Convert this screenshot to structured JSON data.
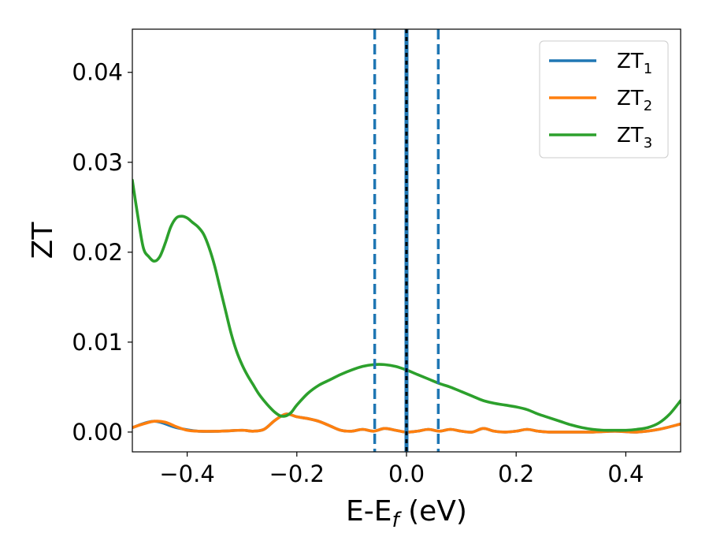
{
  "chart_data": {
    "type": "line",
    "title": "",
    "xlabel": {
      "main": "E-E",
      "sub": "f",
      "suffix": " (eV)"
    },
    "ylabel": "ZT",
    "xlim": [
      -0.5,
      0.5
    ],
    "ylim": [
      -0.0022,
      0.0448
    ],
    "grid": false,
    "legend_position": "top-right",
    "xticks": [
      -0.4,
      -0.2,
      0.0,
      0.2,
      0.4
    ],
    "xtick_labels": [
      "−0.4",
      "−0.2",
      "0.0",
      "0.2",
      "0.4"
    ],
    "yticks": [
      0.0,
      0.01,
      0.02,
      0.03,
      0.04
    ],
    "ytick_labels": [
      "0.00",
      "0.01",
      "0.02",
      "0.03",
      "0.04"
    ],
    "vlines": [
      {
        "x": -0.058,
        "style": "dashed",
        "color": "#1f77b4"
      },
      {
        "x": 0.058,
        "style": "dashed",
        "color": "#1f77b4"
      },
      {
        "x": 0.0,
        "style": "solid",
        "color": "#1f77b4"
      },
      {
        "x": 0.0,
        "style": "dotted",
        "color": "#000000"
      }
    ],
    "series": [
      {
        "name": "ZT",
        "name_sub": "1",
        "color": "#1f77b4",
        "x": [
          -0.5,
          -0.46,
          -0.42,
          -0.38,
          -0.34,
          -0.3,
          -0.28,
          -0.26,
          -0.24,
          -0.22,
          -0.2,
          -0.18,
          -0.16,
          -0.14,
          -0.12,
          -0.1,
          -0.08,
          -0.06,
          -0.04,
          -0.02,
          0.0,
          0.02,
          0.04,
          0.06,
          0.08,
          0.1,
          0.12,
          0.14,
          0.16,
          0.18,
          0.2,
          0.22,
          0.24,
          0.26,
          0.3,
          0.34,
          0.38,
          0.42,
          0.46,
          0.5
        ],
        "y": [
          0.0005,
          0.0012,
          0.0005,
          0.0001,
          0.0001,
          0.0002,
          0.0001,
          0.0003,
          0.0013,
          0.002,
          0.0017,
          0.0015,
          0.0012,
          0.0007,
          0.0002,
          0.0001,
          0.0003,
          0.0001,
          0.0004,
          0.0002,
          0.0,
          0.0001,
          0.0003,
          0.0001,
          0.0003,
          0.0001,
          0.0,
          0.0004,
          0.0001,
          0.0,
          0.0001,
          0.0003,
          0.0001,
          0.0,
          0.0,
          0.0,
          0.0001,
          0.0,
          0.0003,
          0.0009
        ]
      },
      {
        "name": "ZT",
        "name_sub": "2",
        "color": "#ff7f0e",
        "x": [
          -0.5,
          -0.48,
          -0.46,
          -0.44,
          -0.42,
          -0.4,
          -0.38,
          -0.34,
          -0.3,
          -0.28,
          -0.26,
          -0.24,
          -0.22,
          -0.2,
          -0.18,
          -0.16,
          -0.14,
          -0.12,
          -0.1,
          -0.08,
          -0.06,
          -0.04,
          -0.02,
          0.0,
          0.02,
          0.04,
          0.06,
          0.08,
          0.1,
          0.12,
          0.14,
          0.16,
          0.18,
          0.2,
          0.22,
          0.24,
          0.26,
          0.3,
          0.34,
          0.38,
          0.42,
          0.46,
          0.5
        ],
        "y": [
          0.0005,
          0.0009,
          0.0012,
          0.0011,
          0.0006,
          0.0002,
          0.0001,
          0.0001,
          0.0002,
          0.0001,
          0.0003,
          0.0013,
          0.002,
          0.0017,
          0.0015,
          0.0012,
          0.0007,
          0.0002,
          0.0001,
          0.0003,
          0.0001,
          0.0004,
          0.0002,
          0.0,
          0.0001,
          0.0003,
          0.0001,
          0.0003,
          0.0001,
          0.0,
          0.0004,
          0.0001,
          0.0,
          0.0001,
          0.0003,
          0.0001,
          0.0,
          0.0,
          0.0,
          0.0001,
          0.0,
          0.0003,
          0.0009
        ]
      },
      {
        "name": "ZT",
        "name_sub": "3",
        "color": "#2ca02c",
        "x": [
          -0.5,
          -0.49,
          -0.48,
          -0.47,
          -0.46,
          -0.45,
          -0.44,
          -0.43,
          -0.42,
          -0.41,
          -0.4,
          -0.39,
          -0.38,
          -0.37,
          -0.36,
          -0.35,
          -0.34,
          -0.33,
          -0.32,
          -0.31,
          -0.3,
          -0.29,
          -0.28,
          -0.27,
          -0.26,
          -0.25,
          -0.24,
          -0.23,
          -0.22,
          -0.21,
          -0.2,
          -0.18,
          -0.16,
          -0.14,
          -0.12,
          -0.1,
          -0.08,
          -0.06,
          -0.04,
          -0.02,
          0.0,
          0.02,
          0.04,
          0.06,
          0.08,
          0.1,
          0.12,
          0.14,
          0.16,
          0.18,
          0.2,
          0.22,
          0.24,
          0.26,
          0.28,
          0.3,
          0.32,
          0.34,
          0.36,
          0.38,
          0.4,
          0.42,
          0.44,
          0.46,
          0.48,
          0.5
        ],
        "y": [
          0.028,
          0.024,
          0.0205,
          0.0195,
          0.019,
          0.0195,
          0.021,
          0.0228,
          0.0238,
          0.024,
          0.0238,
          0.0233,
          0.0228,
          0.022,
          0.0205,
          0.0185,
          0.016,
          0.0135,
          0.011,
          0.009,
          0.0075,
          0.0063,
          0.0053,
          0.0043,
          0.0035,
          0.0028,
          0.0022,
          0.0018,
          0.0018,
          0.0022,
          0.003,
          0.0043,
          0.0052,
          0.0058,
          0.0064,
          0.0069,
          0.0073,
          0.0075,
          0.0075,
          0.0073,
          0.0069,
          0.0064,
          0.0059,
          0.0054,
          0.005,
          0.0045,
          0.004,
          0.0035,
          0.0032,
          0.003,
          0.0028,
          0.0025,
          0.002,
          0.0016,
          0.0012,
          0.0008,
          0.0005,
          0.0003,
          0.0002,
          0.0002,
          0.0002,
          0.0003,
          0.0005,
          0.001,
          0.002,
          0.0035
        ]
      }
    ]
  }
}
